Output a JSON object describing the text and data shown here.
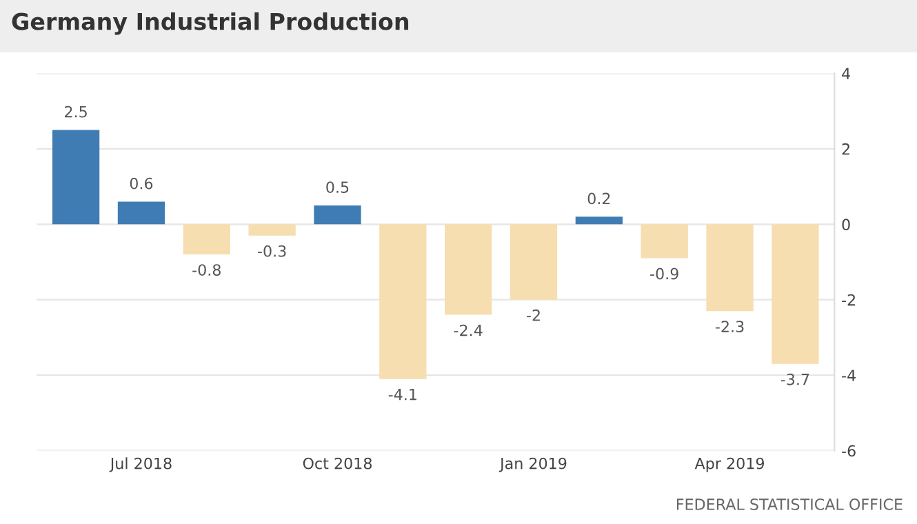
{
  "chart_data": {
    "type": "bar",
    "title": "Germany Industrial Production",
    "categories": [
      null,
      "Jul 2018",
      null,
      null,
      "Oct 2018",
      null,
      null,
      "Jan 2019",
      null,
      null,
      "Apr 2019",
      null
    ],
    "values": [
      2.5,
      0.6,
      -0.8,
      -0.3,
      0.5,
      -4.1,
      -2.4,
      -2,
      0.2,
      -0.9,
      -2.3,
      -3.7
    ],
    "colors": [
      "#3f7cb4",
      "#3f7cb4",
      "#f6deb0",
      "#f6deb0",
      "#3f7cb4",
      "#f6deb0",
      "#f6deb0",
      "#f6deb0",
      "#3f7cb4",
      "#f6deb0",
      "#f6deb0",
      "#f6deb0"
    ],
    "ylim": [
      -6,
      4
    ],
    "yticks": [
      -6,
      -4,
      -2,
      0,
      2,
      4
    ],
    "grid": "y",
    "data_labels": true,
    "annotations": [
      "FEDERAL STATISTICAL OFFICE"
    ]
  }
}
